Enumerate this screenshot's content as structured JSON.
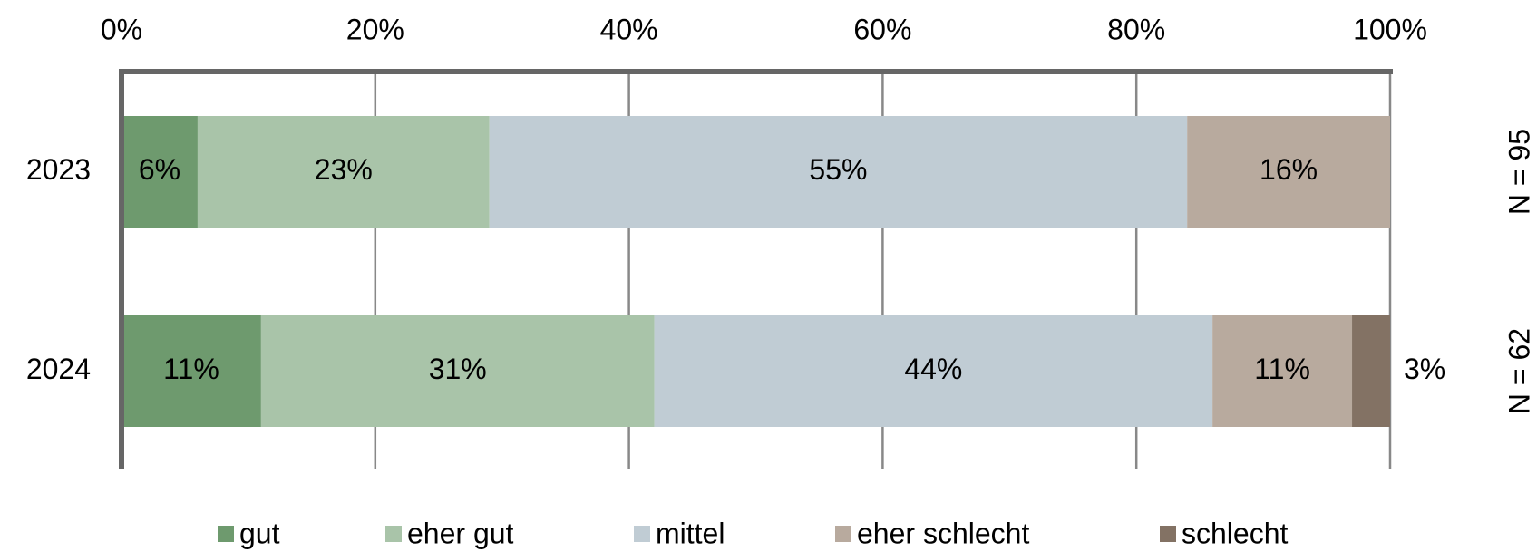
{
  "chart_data": {
    "type": "stacked_bar_horizontal",
    "categories": [
      "2023",
      "2024"
    ],
    "series": [
      {
        "name": "gut",
        "color": "#6e9a6e",
        "values": [
          6,
          11
        ],
        "value_labels": [
          "6%",
          "11%"
        ]
      },
      {
        "name": "eher gut",
        "color": "#a9c4a9",
        "values": [
          23,
          31
        ],
        "value_labels": [
          "23%",
          "31%"
        ]
      },
      {
        "name": "mittel",
        "color": "#c0ccd4",
        "values": [
          55,
          44
        ],
        "value_labels": [
          "55%",
          "44%"
        ]
      },
      {
        "name": "eher schlecht",
        "color": "#b8aa9e",
        "values": [
          16,
          11
        ],
        "value_labels": [
          "16%",
          "11%"
        ]
      },
      {
        "name": "schlecht",
        "color": "#837264",
        "values": [
          0,
          3
        ],
        "value_labels": [
          null,
          "3%"
        ]
      }
    ],
    "xlim": [
      0,
      100
    ],
    "xticks": [
      {
        "value": 0,
        "label": "0%"
      },
      {
        "value": 20,
        "label": "20%"
      },
      {
        "value": 40,
        "label": "40%"
      },
      {
        "value": 60,
        "label": "60%"
      },
      {
        "value": 80,
        "label": "80%"
      },
      {
        "value": 100,
        "label": "100%"
      }
    ],
    "grid": true,
    "legend": "bottom",
    "annotations": [
      "N = 95",
      "N = 62"
    ]
  }
}
